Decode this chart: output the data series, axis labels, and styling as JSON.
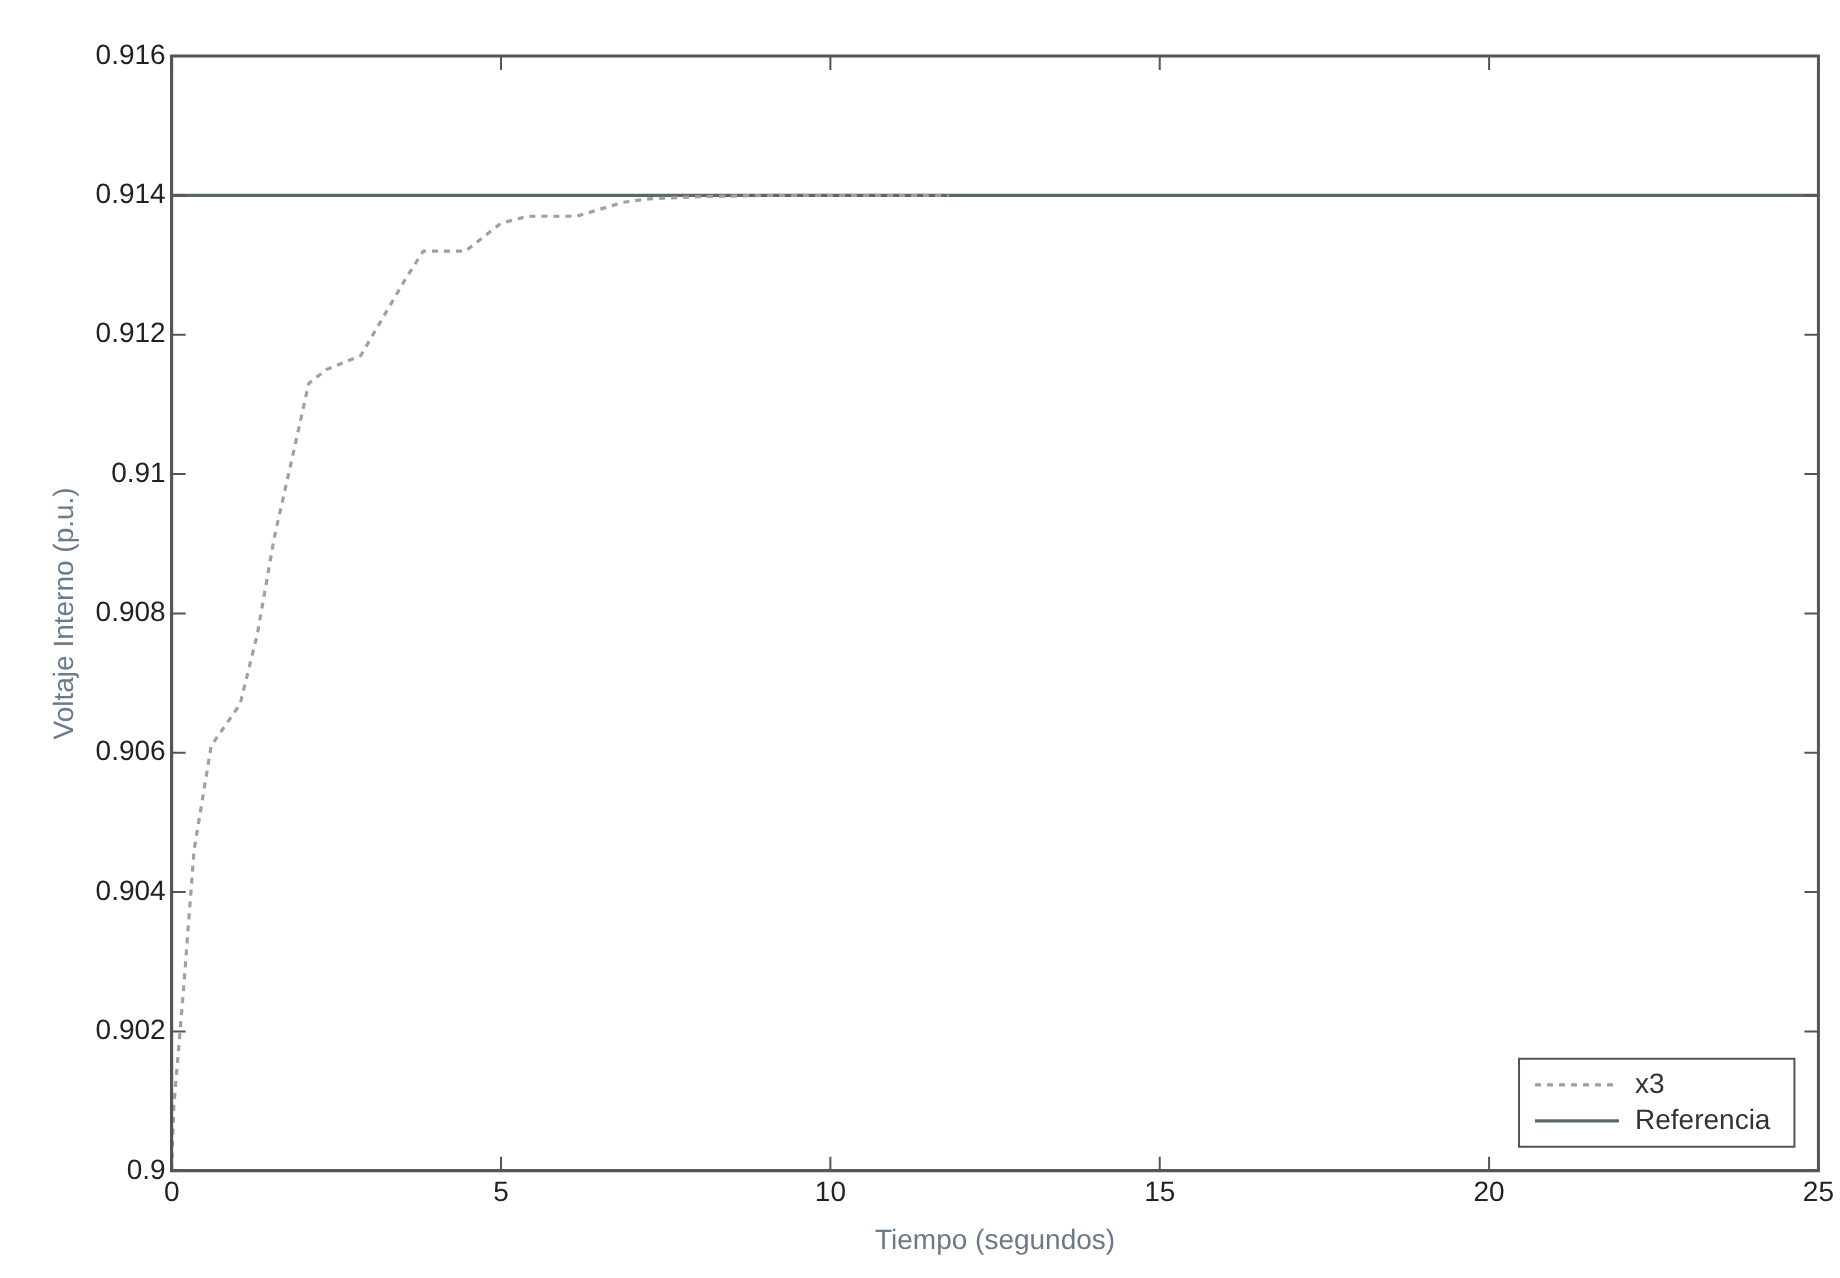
{
  "chart_data": {
    "type": "line",
    "xlabel": "Tiempo (segundos)",
    "ylabel": "Voltaje Interno (p.u.)",
    "xlim": [
      0,
      25
    ],
    "xticks": [
      0,
      5,
      10,
      15,
      20,
      25
    ],
    "ylim": [
      0.9,
      0.916
    ],
    "yticks": [
      0.9,
      0.902,
      0.904,
      0.906,
      0.908,
      0.91,
      0.912,
      0.914,
      0.916
    ],
    "grid": false,
    "legend": "bottom right",
    "marker": "none",
    "series": [
      {
        "name": "x3",
        "color": "#a0a0a0",
        "line_style": "dotted",
        "x": [
          0,
          0.03,
          0.18,
          0.34,
          0.6,
          1.04,
          1.3,
          1.56,
          1.87,
          2.08,
          2.35,
          2.87,
          3.18,
          3.55,
          3.82,
          4.46,
          5.0,
          5.41,
          6.15,
          6.85,
          7.25,
          8,
          9,
          10,
          11,
          11.8
        ],
        "values": [
          0.9,
          0.9009,
          0.9026,
          0.9046,
          0.9061,
          0.9067,
          0.9077,
          0.9091,
          0.9104,
          0.9113,
          0.9115,
          0.9117,
          0.9122,
          0.9128,
          0.9132,
          0.9132,
          0.9136,
          0.9137,
          0.9137,
          0.9139,
          0.91395,
          0.91398,
          0.914,
          0.914,
          0.914,
          0.914
        ]
      },
      {
        "name": "Referencia",
        "color": "#5a6868",
        "line_style": "solid",
        "x": [
          0,
          25
        ],
        "values": [
          0.914,
          0.914
        ]
      }
    ]
  }
}
